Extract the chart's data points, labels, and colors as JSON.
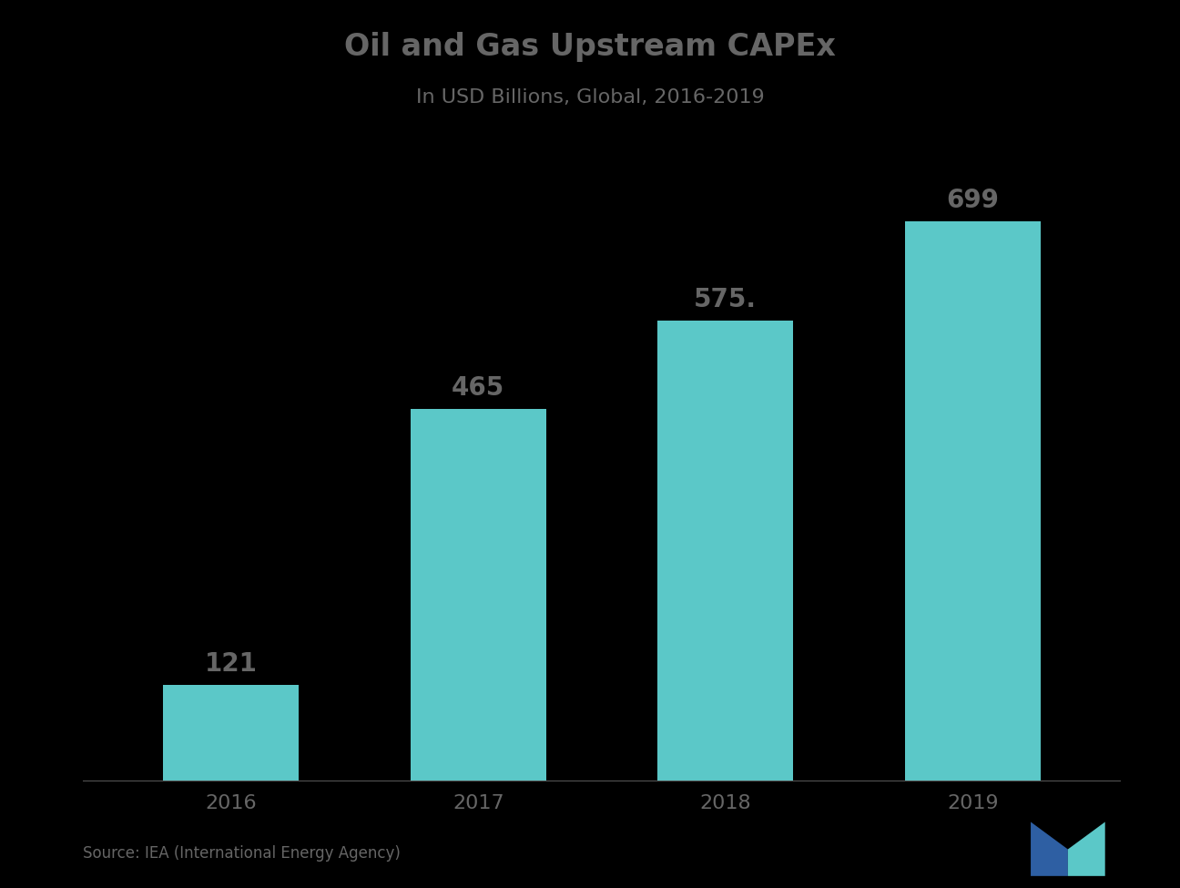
{
  "title_line1": "Oil and Gas Upstream CAPEx",
  "title_line2": "In USD Billions, Global, 2016-2019",
  "categories": [
    "2016",
    "2017",
    "2018",
    "2019"
  ],
  "values": [
    121,
    465,
    575,
    699
  ],
  "bar_labels": [
    "121",
    "465",
    "575.",
    "699"
  ],
  "bar_color": "#5BC8C8",
  "background_color": "#000000",
  "text_color": "#666666",
  "ylim": [
    0,
    820
  ],
  "bar_width": 0.55,
  "source_text": "Source: IEA (International Energy Agency)"
}
